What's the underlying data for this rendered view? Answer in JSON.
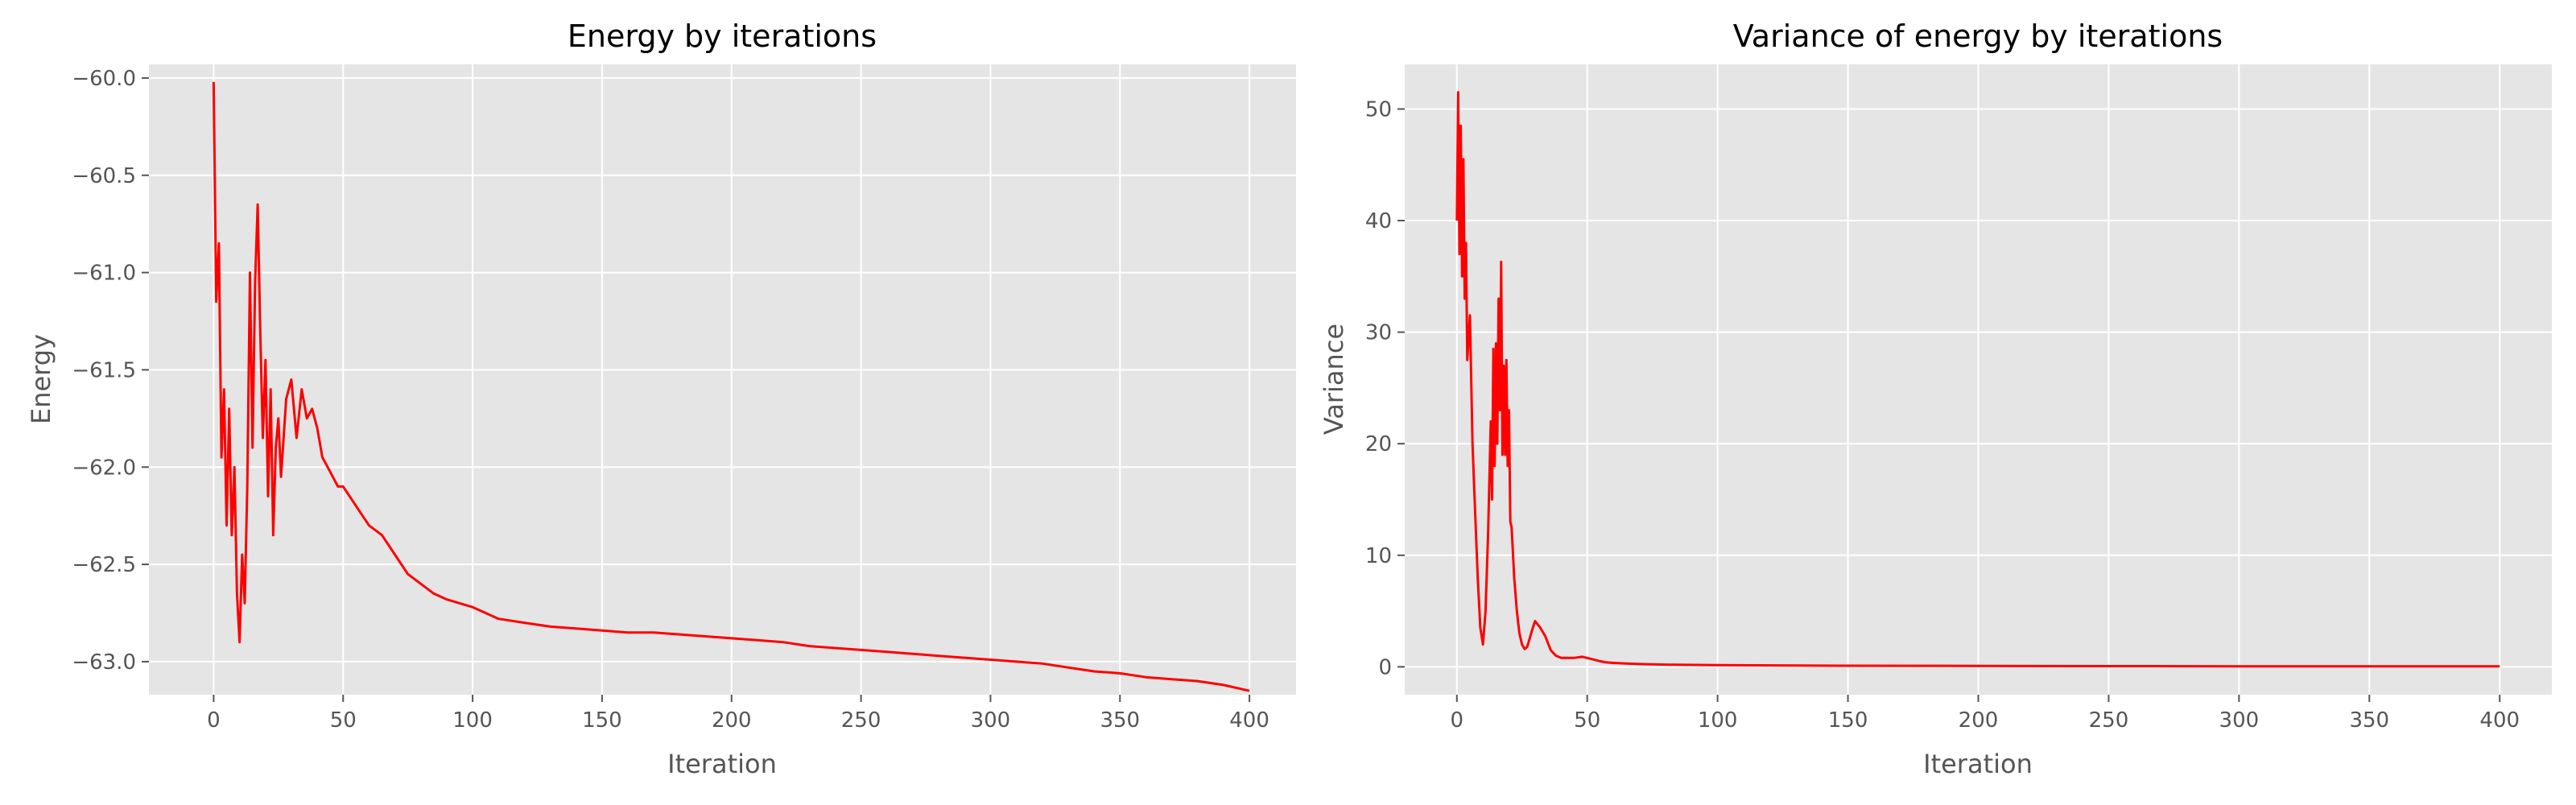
{
  "chart_data": [
    {
      "type": "line",
      "title": "Energy by iterations",
      "xlabel": "Iteration",
      "ylabel": "Energy",
      "xlim": [
        -25,
        418
      ],
      "ylim": [
        -63.17,
        -59.93
      ],
      "xticks": [
        0,
        50,
        100,
        150,
        200,
        250,
        300,
        350,
        400
      ],
      "xtick_labels": [
        "0",
        "50",
        "100",
        "150",
        "200",
        "250",
        "300",
        "350",
        "400"
      ],
      "yticks": [
        -60.0,
        -60.5,
        -61.0,
        -61.5,
        -62.0,
        -62.5,
        -63.0
      ],
      "ytick_labels": [
        "−60.0",
        "−60.5",
        "−61.0",
        "−61.5",
        "−62.0",
        "−62.5",
        "−63.0"
      ],
      "grid": true,
      "series": [
        {
          "color": "#ff0000",
          "x": [
            0,
            1,
            2,
            3,
            4,
            5,
            6,
            7,
            8,
            9,
            10,
            11,
            12,
            13,
            14,
            15,
            16,
            17,
            18,
            19,
            20,
            21,
            22,
            23,
            24,
            25,
            26,
            27,
            28,
            30,
            32,
            34,
            36,
            38,
            40,
            42,
            44,
            46,
            48,
            50,
            55,
            60,
            65,
            70,
            75,
            80,
            85,
            90,
            95,
            100,
            110,
            120,
            130,
            140,
            150,
            160,
            170,
            180,
            190,
            200,
            210,
            220,
            230,
            240,
            250,
            260,
            270,
            280,
            290,
            300,
            310,
            320,
            330,
            340,
            350,
            360,
            370,
            380,
            390,
            400
          ],
          "values": [
            -60.02,
            -61.15,
            -60.85,
            -61.95,
            -61.6,
            -62.3,
            -61.7,
            -62.35,
            -62.0,
            -62.65,
            -62.9,
            -62.45,
            -62.7,
            -62.1,
            -61.0,
            -61.9,
            -61.05,
            -60.65,
            -61.3,
            -61.85,
            -61.45,
            -62.15,
            -61.6,
            -62.35,
            -61.9,
            -61.75,
            -62.05,
            -61.85,
            -61.65,
            -61.55,
            -61.85,
            -61.6,
            -61.75,
            -61.7,
            -61.8,
            -61.95,
            -62.0,
            -62.05,
            -62.1,
            -62.1,
            -62.2,
            -62.3,
            -62.35,
            -62.45,
            -62.55,
            -62.6,
            -62.65,
            -62.68,
            -62.7,
            -62.72,
            -62.78,
            -62.8,
            -62.82,
            -62.83,
            -62.84,
            -62.85,
            -62.85,
            -62.86,
            -62.87,
            -62.88,
            -62.89,
            -62.9,
            -62.92,
            -62.93,
            -62.94,
            -62.95,
            -62.96,
            -62.97,
            -62.98,
            -62.99,
            -63.0,
            -63.01,
            -63.03,
            -63.05,
            -63.06,
            -63.08,
            -63.09,
            -63.1,
            -63.12,
            -63.15
          ]
        }
      ]
    },
    {
      "type": "line",
      "title": "Variance of energy by iterations",
      "xlabel": "Iteration",
      "ylabel": "Variance",
      "xlim": [
        -20,
        420
      ],
      "ylim": [
        -2.5,
        54
      ],
      "xticks": [
        0,
        50,
        100,
        150,
        200,
        250,
        300,
        350,
        400
      ],
      "xtick_labels": [
        "0",
        "50",
        "100",
        "150",
        "200",
        "250",
        "300",
        "350",
        "400"
      ],
      "yticks": [
        0,
        10,
        20,
        30,
        40,
        50
      ],
      "ytick_labels": [
        "0",
        "10",
        "20",
        "30",
        "40",
        "50"
      ],
      "grid": true,
      "series": [
        {
          "color": "#ff0000",
          "x": [
            0,
            0.5,
            1,
            1.5,
            2,
            2.5,
            3,
            3.5,
            4,
            5,
            6,
            7,
            8,
            9,
            10,
            11,
            12,
            13,
            13.5,
            14,
            14.5,
            15,
            15.5,
            16,
            16.5,
            17,
            17.5,
            18,
            18.5,
            19,
            19.5,
            20,
            20.5,
            21,
            22,
            23,
            24,
            25,
            26,
            27,
            28,
            29,
            30,
            32,
            34,
            35,
            36,
            38,
            40,
            42,
            45,
            48,
            50,
            55,
            57,
            60,
            65,
            70,
            80,
            100,
            150,
            200,
            250,
            300,
            350,
            400
          ],
          "values": [
            40,
            51.5,
            37,
            48.5,
            35,
            45.5,
            33,
            38,
            27.5,
            31.5,
            20,
            14,
            8,
            3.5,
            2,
            5,
            12,
            22,
            15,
            28.5,
            18,
            29,
            20,
            33,
            23,
            36.3,
            19,
            27,
            19,
            27.5,
            18,
            23,
            13,
            12.5,
            8,
            5,
            3,
            2,
            1.6,
            1.8,
            2.6,
            3.4,
            4.1,
            3.5,
            2.7,
            2.1,
            1.5,
            1.0,
            0.8,
            0.8,
            0.8,
            0.9,
            0.8,
            0.5,
            0.4,
            0.35,
            0.3,
            0.25,
            0.2,
            0.15,
            0.1,
            0.08,
            0.06,
            0.05,
            0.05,
            0.04
          ]
        }
      ]
    }
  ]
}
